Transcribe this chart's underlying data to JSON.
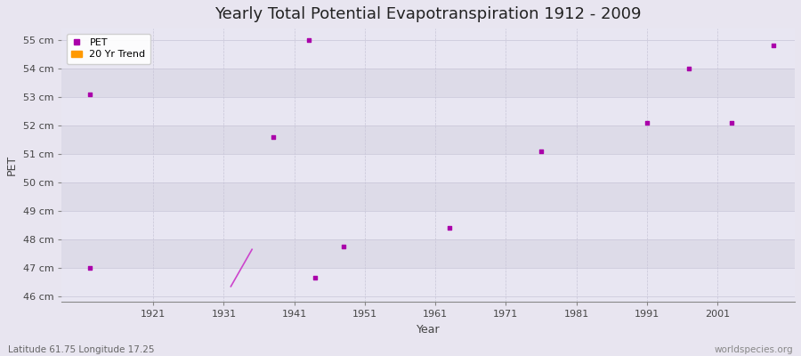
{
  "title": "Yearly Total Potential Evapotranspiration 1912 - 2009",
  "xlabel": "Year",
  "ylabel": "PET",
  "background_color": "#e8e5f0",
  "plot_bg_color": "#eeecf5",
  "grid_color": "#c8c5d8",
  "pet_color": "#aa00aa",
  "trend_color": "#cc44cc",
  "legend_pet_color": "#aa00aa",
  "legend_trend_color": "#ff9900",
  "band_colors": [
    "#e8e6f2",
    "#dddbe8"
  ],
  "ylim": [
    45.8,
    55.4
  ],
  "yticks": [
    46,
    47,
    48,
    49,
    50,
    51,
    52,
    53,
    54,
    55
  ],
  "ytick_labels": [
    "46 cm",
    "47 cm",
    "48 cm",
    "49 cm",
    "50 cm",
    "51 cm",
    "52 cm",
    "53 cm",
    "54 cm",
    "55 cm"
  ],
  "xlim": [
    1908,
    2012
  ],
  "xticks": [
    1921,
    1931,
    1941,
    1951,
    1961,
    1971,
    1981,
    1991,
    2001
  ],
  "pet_points": [
    [
      1912,
      53.1
    ],
    [
      1912,
      47.0
    ],
    [
      1938,
      51.6
    ],
    [
      1943,
      55.0
    ],
    [
      1944,
      46.65
    ],
    [
      1948,
      47.75
    ],
    [
      1963,
      48.4
    ],
    [
      1976,
      51.1
    ],
    [
      1991,
      52.1
    ],
    [
      1997,
      54.0
    ],
    [
      2003,
      52.1
    ],
    [
      2009,
      54.8
    ]
  ],
  "trend_line": [
    [
      1932,
      46.35
    ],
    [
      1935,
      47.65
    ]
  ],
  "legend_labels": [
    "PET",
    "20 Yr Trend"
  ],
  "footnote_left": "Latitude 61.75 Longitude 17.25",
  "footnote_right": "worldspecies.org",
  "title_fontsize": 13,
  "axis_label_fontsize": 9,
  "tick_fontsize": 8,
  "footnote_fontsize": 7.5
}
